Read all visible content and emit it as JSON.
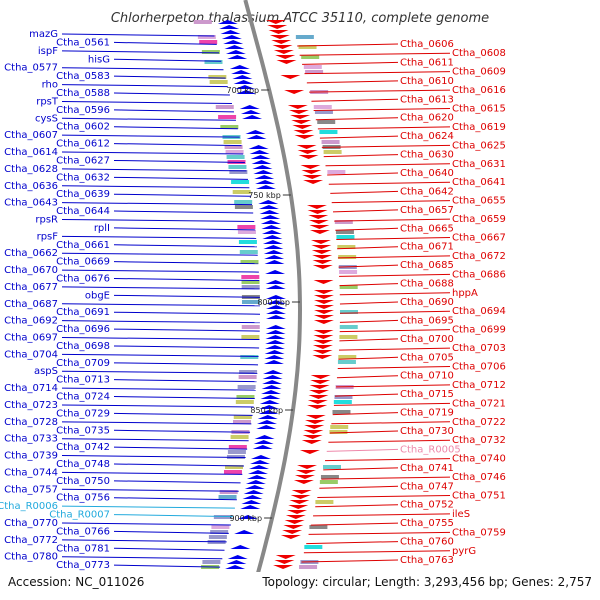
{
  "title": "Chlorherpeton thalassium ATCC 35110, complete genome",
  "footer": {
    "accession": "Accession: NC_011026",
    "topology": "Topology: circular; Length: 3,293,456 bp; Genes: 2,757"
  },
  "colors": {
    "left_labels": "#0000cc",
    "right_labels": "#dd0000",
    "rna_left": "#22aadd",
    "rna_right": "#ee88aa",
    "backbone": "#888888",
    "tick": "#33aa33"
  },
  "scale_ticks": [
    {
      "label": "700 kbp"
    },
    {
      "label": "750 kbp"
    },
    {
      "label": "800 kbp"
    },
    {
      "label": "850 kbp"
    },
    {
      "label": "900 kbp"
    }
  ],
  "left_labels": [
    {
      "text": "mazG"
    },
    {
      "text": "Ctha_0561"
    },
    {
      "text": "ispF"
    },
    {
      "text": "hisG"
    },
    {
      "text": "Ctha_0577"
    },
    {
      "text": "Ctha_0583"
    },
    {
      "text": "rho"
    },
    {
      "text": "Ctha_0588"
    },
    {
      "text": "rpsT"
    },
    {
      "text": "Ctha_0596"
    },
    {
      "text": "cysS"
    },
    {
      "text": "Ctha_0602"
    },
    {
      "text": "Ctha_0607"
    },
    {
      "text": "Ctha_0612"
    },
    {
      "text": "Ctha_0614"
    },
    {
      "text": "Ctha_0627"
    },
    {
      "text": "Ctha_0628"
    },
    {
      "text": "Ctha_0632"
    },
    {
      "text": "Ctha_0636"
    },
    {
      "text": "Ctha_0639"
    },
    {
      "text": "Ctha_0643"
    },
    {
      "text": "Ctha_0644"
    },
    {
      "text": "rpsR"
    },
    {
      "text": "rplI"
    },
    {
      "text": "rpsF"
    },
    {
      "text": "Ctha_0661"
    },
    {
      "text": "Ctha_0662"
    },
    {
      "text": "Ctha_0669"
    },
    {
      "text": "Ctha_0670"
    },
    {
      "text": "Ctha_0676"
    },
    {
      "text": "Ctha_0677"
    },
    {
      "text": "obgE"
    },
    {
      "text": "Ctha_0687"
    },
    {
      "text": "Ctha_0691"
    },
    {
      "text": "Ctha_0692"
    },
    {
      "text": "Ctha_0696"
    },
    {
      "text": "Ctha_0697"
    },
    {
      "text": "Ctha_0698"
    },
    {
      "text": "Ctha_0704"
    },
    {
      "text": "Ctha_0709"
    },
    {
      "text": "aspS"
    },
    {
      "text": "Ctha_0713"
    },
    {
      "text": "Ctha_0714"
    },
    {
      "text": "Ctha_0724"
    },
    {
      "text": "Ctha_0723"
    },
    {
      "text": "Ctha_0729"
    },
    {
      "text": "Ctha_0728"
    },
    {
      "text": "Ctha_0735"
    },
    {
      "text": "Ctha_0733"
    },
    {
      "text": "Ctha_0742"
    },
    {
      "text": "Ctha_0739"
    },
    {
      "text": "Ctha_0748"
    },
    {
      "text": "Ctha_0744"
    },
    {
      "text": "Ctha_0750"
    },
    {
      "text": "Ctha_0757"
    },
    {
      "text": "Ctha_0756"
    },
    {
      "text": "Ctha_R0006",
      "rna": true
    },
    {
      "text": "Ctha_R0007",
      "rna": true
    },
    {
      "text": "Ctha_0770"
    },
    {
      "text": "Ctha_0766"
    },
    {
      "text": "Ctha_0772"
    },
    {
      "text": "Ctha_0781"
    },
    {
      "text": "Ctha_0780"
    },
    {
      "text": "Ctha_0773"
    }
  ],
  "right_labels": [
    {
      "text": "Ctha_0606"
    },
    {
      "text": "Ctha_0608"
    },
    {
      "text": "Ctha_0611"
    },
    {
      "text": "Ctha_0609"
    },
    {
      "text": "Ctha_0610"
    },
    {
      "text": "Ctha_0616"
    },
    {
      "text": "Ctha_0613"
    },
    {
      "text": "Ctha_0615"
    },
    {
      "text": "Ctha_0620"
    },
    {
      "text": "Ctha_0619"
    },
    {
      "text": "Ctha_0624"
    },
    {
      "text": "Ctha_0625"
    },
    {
      "text": "Ctha_0630"
    },
    {
      "text": "Ctha_0631"
    },
    {
      "text": "Ctha_0640"
    },
    {
      "text": "Ctha_0641"
    },
    {
      "text": "Ctha_0642"
    },
    {
      "text": "Ctha_0655"
    },
    {
      "text": "Ctha_0657"
    },
    {
      "text": "Ctha_0659"
    },
    {
      "text": "Ctha_0665"
    },
    {
      "text": "Ctha_0667"
    },
    {
      "text": "Ctha_0671"
    },
    {
      "text": "Ctha_0672"
    },
    {
      "text": "Ctha_0685"
    },
    {
      "text": "Ctha_0686"
    },
    {
      "text": "Ctha_0688"
    },
    {
      "text": "hppA"
    },
    {
      "text": "Ctha_0690"
    },
    {
      "text": "Ctha_0694"
    },
    {
      "text": "Ctha_0695"
    },
    {
      "text": "Ctha_0699"
    },
    {
      "text": "Ctha_0700"
    },
    {
      "text": "Ctha_0703"
    },
    {
      "text": "Ctha_0705"
    },
    {
      "text": "Ctha_0706"
    },
    {
      "text": "Ctha_0710"
    },
    {
      "text": "Ctha_0712"
    },
    {
      "text": "Ctha_0715"
    },
    {
      "text": "Ctha_0721"
    },
    {
      "text": "Ctha_0719"
    },
    {
      "text": "Ctha_0722"
    },
    {
      "text": "Ctha_0730"
    },
    {
      "text": "Ctha_0732"
    },
    {
      "text": "Ctha_R0005",
      "rna": true
    },
    {
      "text": "Ctha_0740"
    },
    {
      "text": "Ctha_0741"
    },
    {
      "text": "Ctha_0746"
    },
    {
      "text": "Ctha_0747"
    },
    {
      "text": "Ctha_0751"
    },
    {
      "text": "Ctha_0752"
    },
    {
      "text": "ileS"
    },
    {
      "text": "Ctha_0755"
    },
    {
      "text": "Ctha_0759"
    },
    {
      "text": "Ctha_0760"
    },
    {
      "text": "pyrG"
    },
    {
      "text": "Ctha_0763"
    }
  ]
}
